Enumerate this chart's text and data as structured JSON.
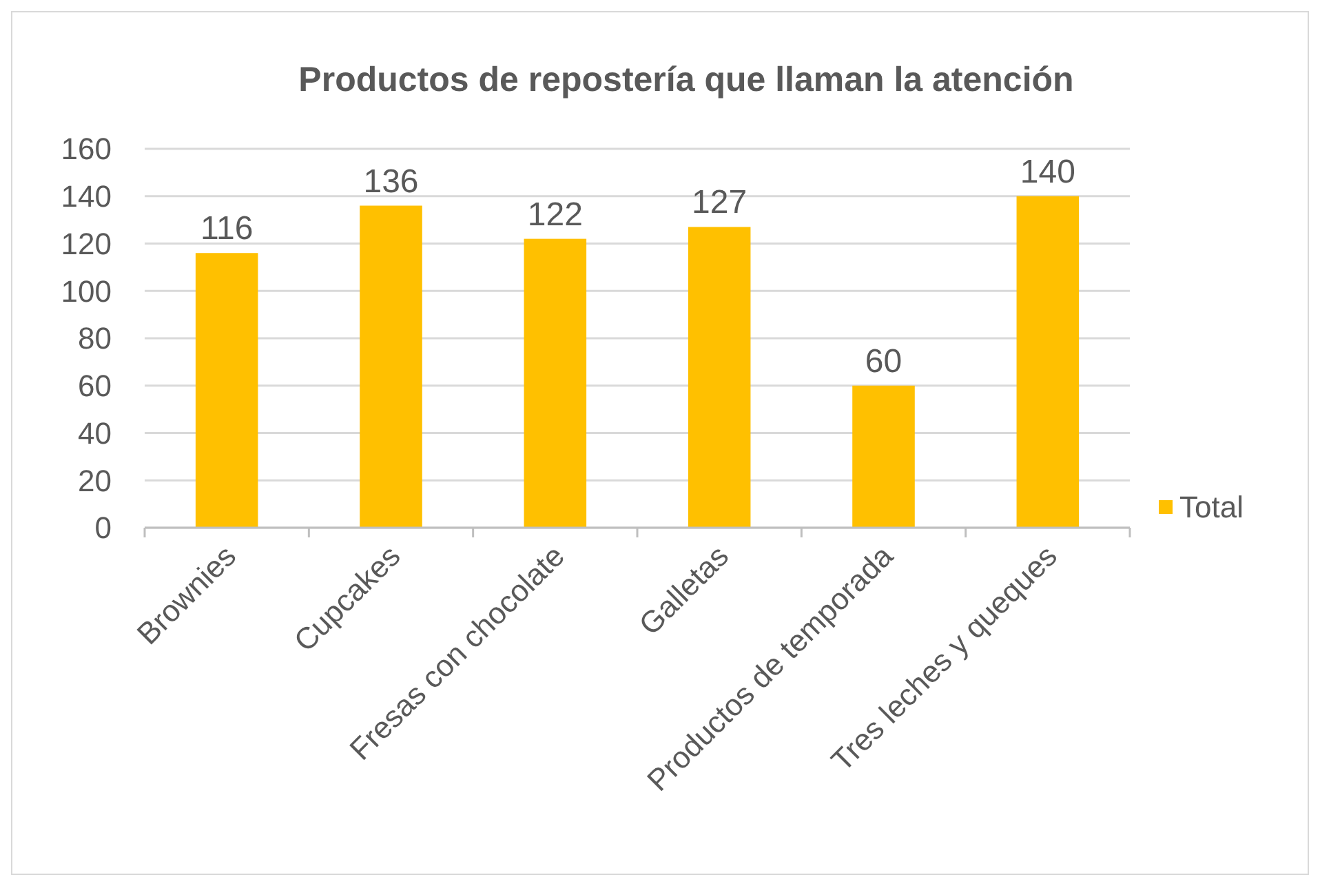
{
  "chart_data": {
    "type": "bar",
    "title": "Productos de repostería que llaman la atención",
    "categories": [
      "Brownies",
      "Cupcakes",
      "Fresas con chocolate",
      "Galletas",
      "Productos de temporada",
      "Tres leches y queques"
    ],
    "series": [
      {
        "name": "Total",
        "color": "#ffc000",
        "values": [
          116,
          136,
          122,
          127,
          60,
          140
        ]
      }
    ],
    "ylim": [
      0,
      160
    ],
    "yticks": [
      0,
      20,
      40,
      60,
      80,
      100,
      120,
      140,
      160
    ],
    "grid": "y",
    "legend": "right",
    "data_labels": true
  }
}
